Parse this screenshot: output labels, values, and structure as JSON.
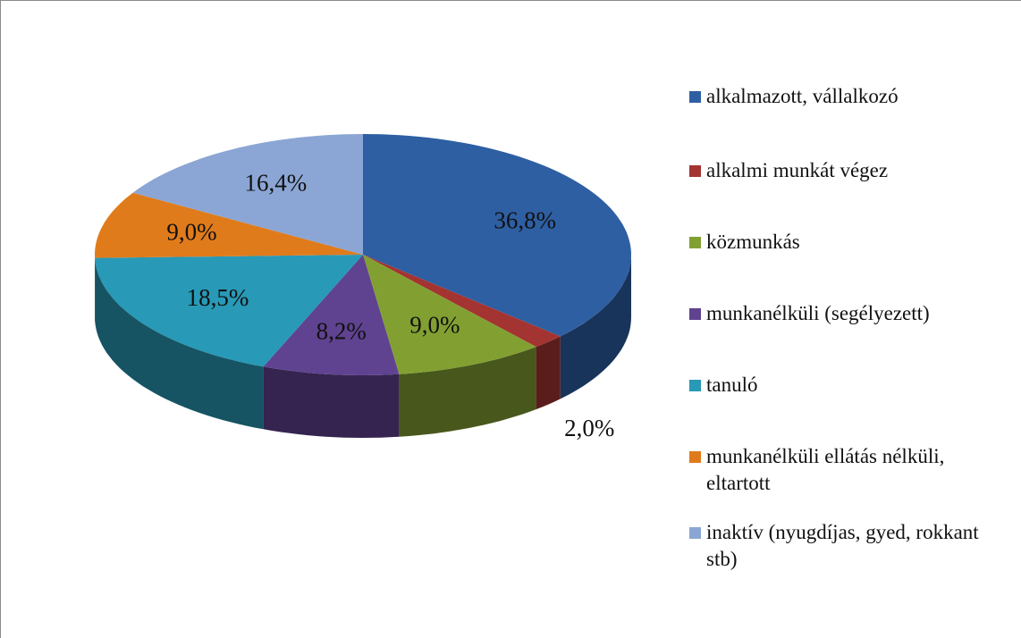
{
  "chart_data": {
    "type": "pie3d",
    "categories": [
      "alkalmazott, vállalkozó",
      "alkalmi munkát végez",
      "közmunkás",
      "munkanélküli (segélyezett)",
      "tanuló",
      "munkanélküli ellátás nélküli, eltartott",
      "inaktív (nyugdíjas, gyed, rokkant stb)"
    ],
    "values": [
      36.8,
      2.0,
      9.0,
      8.2,
      18.5,
      9.0,
      16.4
    ],
    "value_labels": [
      "36,8%",
      "2,0%",
      "9,0%",
      "8,2%",
      "18,5%",
      "9,0%",
      "16,4%"
    ],
    "colors": [
      "#2e5fa3",
      "#a33432",
      "#82a032",
      "#5f4290",
      "#2899b6",
      "#e07b1c",
      "#8ba6d4"
    ],
    "legend": "right"
  }
}
